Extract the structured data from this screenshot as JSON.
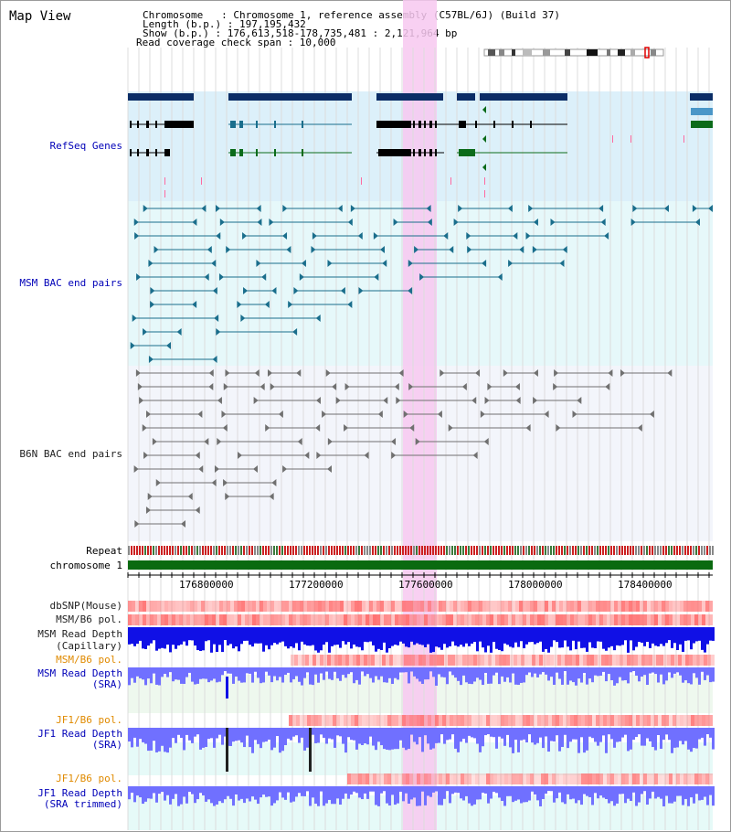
{
  "view": {
    "title": "Map View",
    "chromosome": "Chromosome   : Chromosome 1, reference assembly (C57BL/6J) (Build 37)",
    "length": "Length (b.p.) : 197,195,432",
    "show": "Show (b.p.) : 176,613,518-178,735,481 : 2,121,964 bp",
    "coverage": "Read coverage check span : 10,000"
  },
  "colors": {
    "highlight": "#f7c8f0",
    "refseq_bg": "#dcf0fa",
    "bac_bg": "#e6f8fa",
    "b6n_bg": "#f3f5fb",
    "gene_dark": "#0b2d66",
    "gene_mid": "#4a96c8",
    "gene_green": "#0b6b1a",
    "msm_bac": "#1a6e8c",
    "b6n_bac": "#707070",
    "snp": "#ff6a6a",
    "depth_blue": "#1010e6",
    "depth_light": "#7070ff",
    "chrom_green": "#0a6a10"
  },
  "tracks": {
    "refseq": "RefSeq Genes",
    "msm_bac": "MSM BAC end pairs",
    "b6n_bac": "B6N BAC end pairs",
    "repeat": "Repeat",
    "chromosome": "chromosome 1",
    "dbsnp": "dbSNP(Mouse)",
    "msm_b6_pol_1": "MSM/B6 pol.",
    "msm_depth_cap_1": "MSM Read Depth",
    "msm_depth_cap_2": "(Capillary)",
    "msm_b6_pol_2": "MSM/B6 pol.",
    "msm_depth_sra_1": "MSM Read Depth",
    "msm_depth_sra_2": "(SRA)",
    "jf1_b6_pol_1": "JF1/B6 pol.",
    "jf1_depth_sra_1": "JF1 Read Depth",
    "jf1_depth_sra_2": "(SRA)",
    "jf1_b6_pol_2": "JF1/B6 pol.",
    "jf1_depth_trim_1": "JF1 Read Depth",
    "jf1_depth_trim_2": "(SRA trimmed)"
  },
  "axis": {
    "ticks": [
      "176800000",
      "177200000",
      "177600000",
      "178000000",
      "178400000"
    ]
  }
}
